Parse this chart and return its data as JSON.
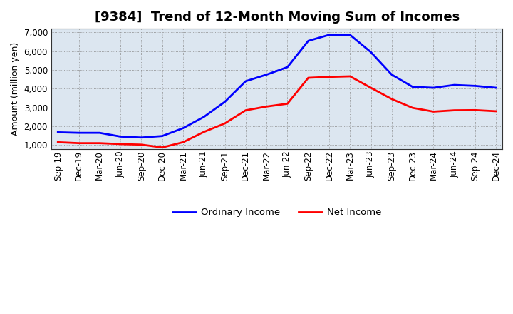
{
  "title": "[9384]  Trend of 12-Month Moving Sum of Incomes",
  "ylabel": "Amount (million yen)",
  "ylim": [
    800,
    7200
  ],
  "yticks": [
    1000,
    2000,
    3000,
    4000,
    5000,
    6000,
    7000
  ],
  "background_color": "#ffffff",
  "plot_bg_color": "#dce6f0",
  "labels": [
    "Sep-19",
    "Dec-19",
    "Mar-20",
    "Jun-20",
    "Sep-20",
    "Dec-20",
    "Mar-21",
    "Jun-21",
    "Sep-21",
    "Dec-21",
    "Mar-22",
    "Jun-22",
    "Sep-22",
    "Dec-22",
    "Mar-23",
    "Jun-23",
    "Sep-23",
    "Dec-23",
    "Mar-24",
    "Jun-24",
    "Sep-24",
    "Dec-24"
  ],
  "ordinary_income": [
    1680,
    1650,
    1650,
    1450,
    1400,
    1480,
    1900,
    2500,
    3300,
    4400,
    4750,
    5150,
    6550,
    6870,
    6870,
    5950,
    4750,
    4100,
    4050,
    4200,
    4150,
    4050
  ],
  "net_income": [
    1150,
    1100,
    1100,
    1050,
    1020,
    870,
    1150,
    1700,
    2150,
    2850,
    3050,
    3200,
    4580,
    4630,
    4660,
    4050,
    3450,
    2980,
    2780,
    2850,
    2860,
    2800
  ],
  "ordinary_color": "#0000ff",
  "net_color": "#ff0000",
  "line_width": 2.0,
  "grid_color": "#888888",
  "grid_linestyle": ":",
  "grid_linewidth": 0.6,
  "title_fontsize": 13,
  "label_fontsize": 8.5,
  "ylabel_fontsize": 9,
  "legend_fontsize": 9.5
}
